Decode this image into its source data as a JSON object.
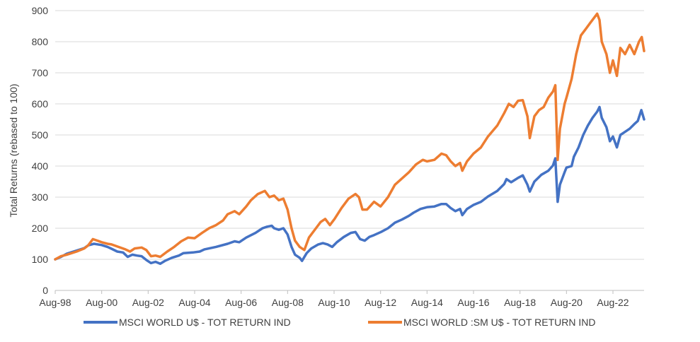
{
  "chart_data": {
    "type": "line",
    "title": "",
    "xlabel": "",
    "ylabel": "Total Returns (rebased to 100)",
    "ylim": [
      0,
      900
    ],
    "yticks": [
      0,
      100,
      200,
      300,
      400,
      500,
      600,
      700,
      800,
      900
    ],
    "xlim": [
      1998.58,
      2023.92
    ],
    "xticks": [
      {
        "x": 1998.58,
        "label": "Aug-98"
      },
      {
        "x": 2000.58,
        "label": "Aug-00"
      },
      {
        "x": 2002.58,
        "label": "Aug-02"
      },
      {
        "x": 2004.58,
        "label": "Aug-04"
      },
      {
        "x": 2006.58,
        "label": "Aug-06"
      },
      {
        "x": 2008.58,
        "label": "Aug-08"
      },
      {
        "x": 2010.58,
        "label": "Aug-10"
      },
      {
        "x": 2012.58,
        "label": "Aug-12"
      },
      {
        "x": 2014.58,
        "label": "Aug-14"
      },
      {
        "x": 2016.58,
        "label": "Aug-16"
      },
      {
        "x": 2018.58,
        "label": "Aug-18"
      },
      {
        "x": 2020.58,
        "label": "Aug-20"
      },
      {
        "x": 2022.58,
        "label": "Aug-22"
      }
    ],
    "grid": true,
    "legend": "bottom",
    "series": [
      {
        "name": "MSCI WORLD U$ - TOT RETURN IND",
        "color": "#4472c4",
        "points": [
          [
            1998.58,
            100
          ],
          [
            1998.83,
            108
          ],
          [
            1999.08,
            118
          ],
          [
            1999.5,
            128
          ],
          [
            1999.83,
            136
          ],
          [
            2000.0,
            145
          ],
          [
            2000.25,
            150
          ],
          [
            2000.58,
            146
          ],
          [
            2000.83,
            140
          ],
          [
            2001.0,
            134
          ],
          [
            2001.25,
            125
          ],
          [
            2001.5,
            122
          ],
          [
            2001.7,
            108
          ],
          [
            2001.9,
            115
          ],
          [
            2002.1,
            112
          ],
          [
            2002.3,
            110
          ],
          [
            2002.5,
            98
          ],
          [
            2002.7,
            88
          ],
          [
            2002.9,
            92
          ],
          [
            2003.1,
            86
          ],
          [
            2003.3,
            95
          ],
          [
            2003.6,
            105
          ],
          [
            2003.9,
            112
          ],
          [
            2004.1,
            120
          ],
          [
            2004.5,
            122
          ],
          [
            2004.8,
            125
          ],
          [
            2005.0,
            132
          ],
          [
            2005.5,
            140
          ],
          [
            2006.0,
            150
          ],
          [
            2006.3,
            158
          ],
          [
            2006.5,
            155
          ],
          [
            2006.8,
            170
          ],
          [
            2007.2,
            185
          ],
          [
            2007.5,
            200
          ],
          [
            2007.7,
            205
          ],
          [
            2007.9,
            208
          ],
          [
            2008.0,
            200
          ],
          [
            2008.2,
            195
          ],
          [
            2008.4,
            200
          ],
          [
            2008.58,
            180
          ],
          [
            2008.75,
            140
          ],
          [
            2008.9,
            115
          ],
          [
            2009.1,
            105
          ],
          [
            2009.2,
            95
          ],
          [
            2009.4,
            120
          ],
          [
            2009.6,
            135
          ],
          [
            2009.9,
            148
          ],
          [
            2010.1,
            152
          ],
          [
            2010.3,
            148
          ],
          [
            2010.5,
            140
          ],
          [
            2010.7,
            155
          ],
          [
            2011.0,
            172
          ],
          [
            2011.3,
            185
          ],
          [
            2011.5,
            188
          ],
          [
            2011.7,
            165
          ],
          [
            2011.9,
            160
          ],
          [
            2012.1,
            172
          ],
          [
            2012.3,
            178
          ],
          [
            2012.6,
            188
          ],
          [
            2012.9,
            200
          ],
          [
            2013.2,
            218
          ],
          [
            2013.5,
            228
          ],
          [
            2013.8,
            240
          ],
          [
            2014.0,
            250
          ],
          [
            2014.3,
            262
          ],
          [
            2014.6,
            268
          ],
          [
            2014.9,
            270
          ],
          [
            2015.2,
            278
          ],
          [
            2015.4,
            278
          ],
          [
            2015.6,
            265
          ],
          [
            2015.8,
            255
          ],
          [
            2016.0,
            262
          ],
          [
            2016.1,
            242
          ],
          [
            2016.3,
            262
          ],
          [
            2016.58,
            275
          ],
          [
            2016.9,
            285
          ],
          [
            2017.2,
            302
          ],
          [
            2017.6,
            320
          ],
          [
            2017.9,
            342
          ],
          [
            2018.0,
            358
          ],
          [
            2018.2,
            348
          ],
          [
            2018.5,
            362
          ],
          [
            2018.7,
            370
          ],
          [
            2018.9,
            340
          ],
          [
            2019.0,
            318
          ],
          [
            2019.2,
            350
          ],
          [
            2019.5,
            372
          ],
          [
            2019.8,
            385
          ],
          [
            2020.0,
            402
          ],
          [
            2020.1,
            425
          ],
          [
            2020.2,
            285
          ],
          [
            2020.3,
            340
          ],
          [
            2020.5,
            380
          ],
          [
            2020.58,
            395
          ],
          [
            2020.8,
            400
          ],
          [
            2020.9,
            430
          ],
          [
            2021.1,
            460
          ],
          [
            2021.3,
            500
          ],
          [
            2021.5,
            530
          ],
          [
            2021.7,
            555
          ],
          [
            2021.9,
            575
          ],
          [
            2022.0,
            590
          ],
          [
            2022.1,
            555
          ],
          [
            2022.3,
            525
          ],
          [
            2022.45,
            480
          ],
          [
            2022.58,
            495
          ],
          [
            2022.75,
            460
          ],
          [
            2022.9,
            500
          ],
          [
            2023.1,
            510
          ],
          [
            2023.3,
            520
          ],
          [
            2023.5,
            535
          ],
          [
            2023.65,
            545
          ],
          [
            2023.8,
            580
          ],
          [
            2023.92,
            550
          ]
        ]
      },
      {
        "name": "MSCI WORLD :SM U$ - TOT RETURN IND",
        "color": "#ed7d31",
        "points": [
          [
            1998.58,
            100
          ],
          [
            1998.83,
            110
          ],
          [
            1999.08,
            115
          ],
          [
            1999.5,
            125
          ],
          [
            1999.83,
            135
          ],
          [
            2000.0,
            145
          ],
          [
            2000.2,
            165
          ],
          [
            2000.4,
            160
          ],
          [
            2000.58,
            155
          ],
          [
            2000.83,
            150
          ],
          [
            2001.0,
            148
          ],
          [
            2001.3,
            140
          ],
          [
            2001.6,
            132
          ],
          [
            2001.8,
            125
          ],
          [
            2002.0,
            135
          ],
          [
            2002.3,
            138
          ],
          [
            2002.5,
            130
          ],
          [
            2002.7,
            110
          ],
          [
            2002.9,
            112
          ],
          [
            2003.1,
            108
          ],
          [
            2003.4,
            125
          ],
          [
            2003.7,
            140
          ],
          [
            2004.0,
            158
          ],
          [
            2004.3,
            170
          ],
          [
            2004.58,
            168
          ],
          [
            2004.9,
            185
          ],
          [
            2005.2,
            200
          ],
          [
            2005.5,
            210
          ],
          [
            2005.8,
            225
          ],
          [
            2006.0,
            245
          ],
          [
            2006.3,
            255
          ],
          [
            2006.5,
            245
          ],
          [
            2006.8,
            270
          ],
          [
            2007.0,
            290
          ],
          [
            2007.3,
            310
          ],
          [
            2007.6,
            320
          ],
          [
            2007.8,
            300
          ],
          [
            2008.0,
            305
          ],
          [
            2008.2,
            290
          ],
          [
            2008.4,
            295
          ],
          [
            2008.58,
            260
          ],
          [
            2008.75,
            200
          ],
          [
            2008.9,
            160
          ],
          [
            2009.1,
            140
          ],
          [
            2009.3,
            130
          ],
          [
            2009.5,
            170
          ],
          [
            2009.8,
            200
          ],
          [
            2010.0,
            220
          ],
          [
            2010.2,
            230
          ],
          [
            2010.4,
            210
          ],
          [
            2010.6,
            230
          ],
          [
            2010.9,
            265
          ],
          [
            2011.2,
            295
          ],
          [
            2011.5,
            310
          ],
          [
            2011.65,
            300
          ],
          [
            2011.8,
            260
          ],
          [
            2012.0,
            260
          ],
          [
            2012.3,
            285
          ],
          [
            2012.58,
            270
          ],
          [
            2012.9,
            300
          ],
          [
            2013.2,
            340
          ],
          [
            2013.5,
            360
          ],
          [
            2013.8,
            380
          ],
          [
            2014.1,
            405
          ],
          [
            2014.4,
            420
          ],
          [
            2014.58,
            415
          ],
          [
            2014.9,
            420
          ],
          [
            2015.2,
            440
          ],
          [
            2015.4,
            435
          ],
          [
            2015.6,
            415
          ],
          [
            2015.8,
            400
          ],
          [
            2016.0,
            410
          ],
          [
            2016.1,
            385
          ],
          [
            2016.3,
            415
          ],
          [
            2016.58,
            440
          ],
          [
            2016.9,
            460
          ],
          [
            2017.2,
            495
          ],
          [
            2017.6,
            530
          ],
          [
            2017.9,
            570
          ],
          [
            2018.1,
            600
          ],
          [
            2018.3,
            590
          ],
          [
            2018.5,
            610
          ],
          [
            2018.7,
            612
          ],
          [
            2018.9,
            560
          ],
          [
            2019.0,
            490
          ],
          [
            2019.2,
            560
          ],
          [
            2019.4,
            580
          ],
          [
            2019.6,
            590
          ],
          [
            2019.8,
            620
          ],
          [
            2020.0,
            640
          ],
          [
            2020.1,
            660
          ],
          [
            2020.2,
            420
          ],
          [
            2020.3,
            520
          ],
          [
            2020.5,
            600
          ],
          [
            2020.58,
            620
          ],
          [
            2020.8,
            680
          ],
          [
            2021.0,
            760
          ],
          [
            2021.2,
            820
          ],
          [
            2021.4,
            840
          ],
          [
            2021.6,
            860
          ],
          [
            2021.8,
            880
          ],
          [
            2021.9,
            890
          ],
          [
            2022.0,
            870
          ],
          [
            2022.1,
            800
          ],
          [
            2022.3,
            760
          ],
          [
            2022.45,
            700
          ],
          [
            2022.58,
            740
          ],
          [
            2022.75,
            690
          ],
          [
            2022.9,
            780
          ],
          [
            2023.1,
            760
          ],
          [
            2023.3,
            790
          ],
          [
            2023.5,
            760
          ],
          [
            2023.7,
            800
          ],
          [
            2023.82,
            815
          ],
          [
            2023.92,
            770
          ]
        ]
      }
    ]
  }
}
